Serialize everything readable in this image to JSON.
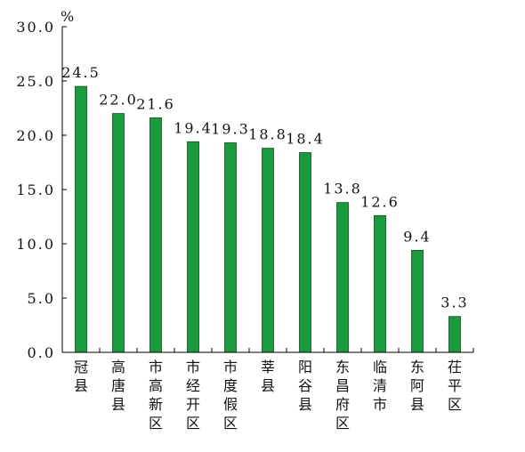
{
  "chart_data": {
    "type": "bar",
    "unit": "%",
    "categories": [
      "冠县",
      "高唐县",
      "市高新区",
      "市经开区",
      "市度假区",
      "莘县",
      "阳谷县",
      "东昌府区",
      "临清市",
      "东阿县",
      "茌平区"
    ],
    "values": [
      24.5,
      22.0,
      21.6,
      19.4,
      19.3,
      18.8,
      18.4,
      13.8,
      12.6,
      9.4,
      3.3
    ],
    "value_labels": [
      "24.5",
      "22.0",
      "21.6",
      "19.4",
      "19.3",
      "18.8",
      "18.4",
      "13.8",
      "12.6",
      "9.4",
      "3.3"
    ],
    "ylim": [
      0,
      30
    ],
    "yticks": [
      0,
      5,
      10,
      15,
      20,
      25,
      30
    ],
    "ytick_labels": [
      "0.0",
      "5.0",
      "10.0",
      "15.0",
      "20.0",
      "25.0",
      "30.0"
    ],
    "bar_color": "#1c9a3e",
    "grid": false,
    "legend": "none"
  }
}
